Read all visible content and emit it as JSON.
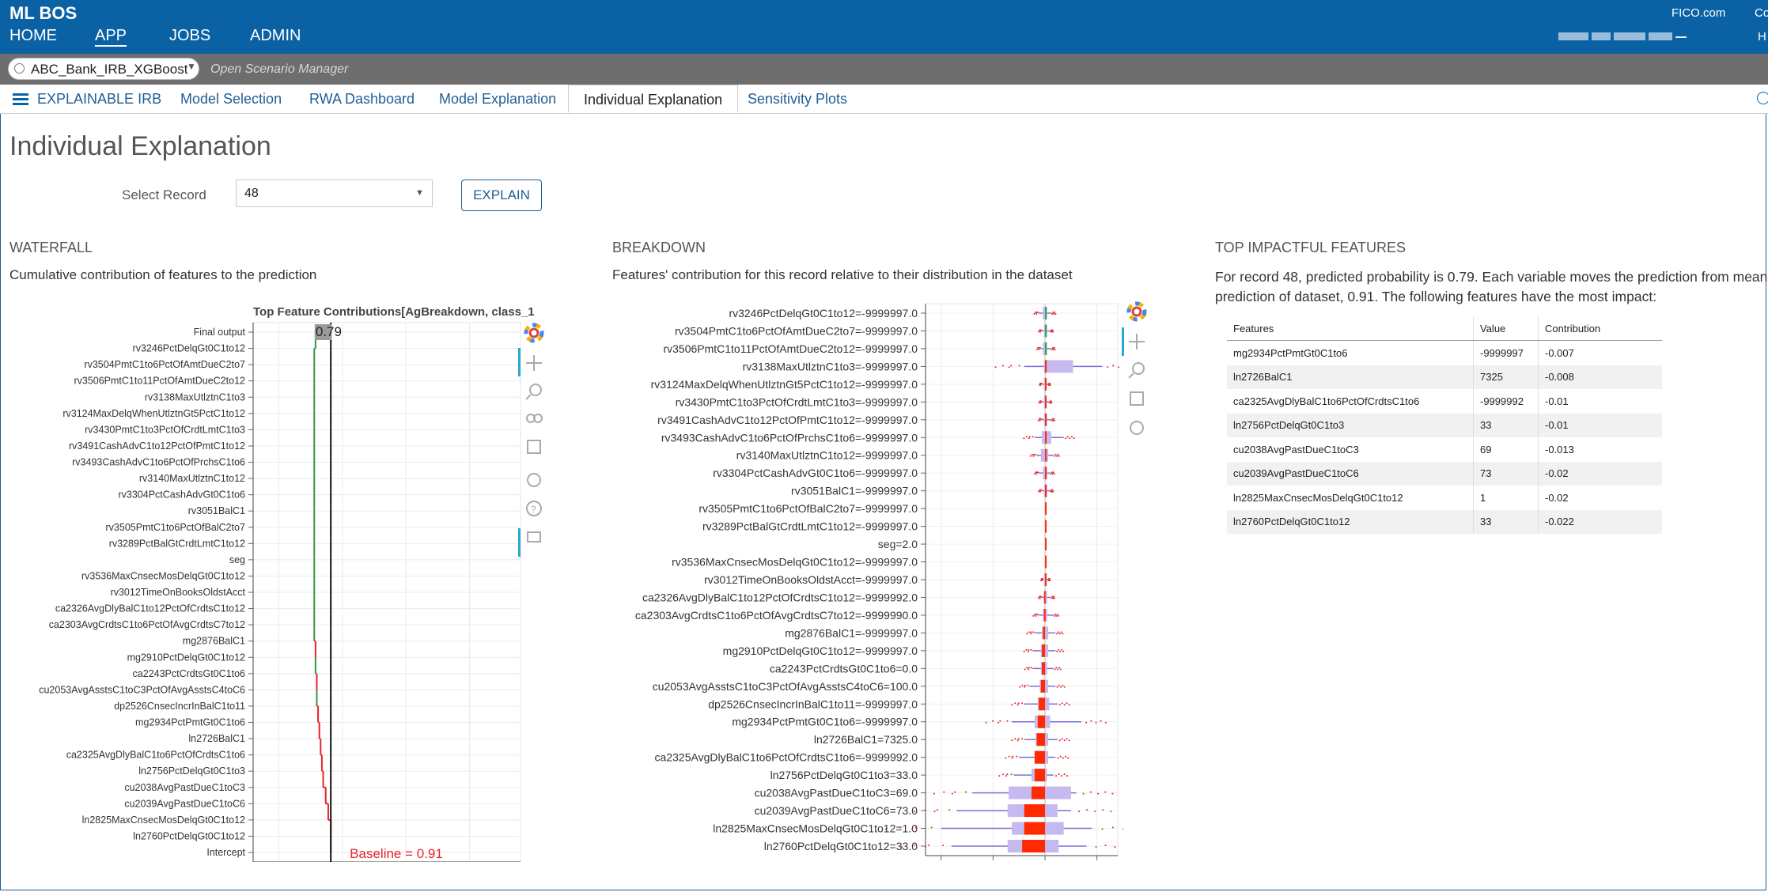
{
  "app": {
    "brand": "ML BOS",
    "fico": "FICO.com",
    "co": "Co",
    "h": "H"
  },
  "nav": [
    "HOME",
    "APP",
    "JOBS",
    "ADMIN"
  ],
  "scenario": {
    "name": "ABC_Bank_IRB_XGBoost",
    "open_manager": "Open Scenario Manager"
  },
  "tabs": [
    "EXPLAINABLE IRB",
    "Model Selection",
    "RWA Dashboard",
    "Model Explanation",
    "Individual Explanation",
    "Sensitivity Plots"
  ],
  "page_title": "Individual Explanation",
  "select": {
    "label": "Select Record",
    "value": "48",
    "button": "EXPLAIN"
  },
  "waterfall": {
    "heading": "WATERFALL",
    "desc": "Cumulative contribution of features to the prediction",
    "chart_title": "Top Feature Contributions[AgBreakdown, class_1",
    "top_label": "0.79",
    "baseline_label": "Baseline = 0.91",
    "x_ticks": [
      "0.5",
      "1",
      "1.5",
      "2"
    ],
    "labels": [
      "Final output",
      "rv3246PctDelqGt0C1to12",
      "rv3504PmtC1to6PctOfAmtDueC2to7",
      "rv3506PmtC1to11PctOfAmtDueC2to12",
      "rv3138MaxUtlztnC1to3",
      "rv3124MaxDelqWhenUtlztnGt5PctC1to12",
      "rv3430PmtC1to3PctOfCrdtLmtC1to3",
      "rv3491CashAdvC1to12PctOfPmtC1to12",
      "rv3493CashAdvC1to6PctOfPrchsC1to6",
      "rv3140MaxUtlztnC1to12",
      "rv3304PctCashAdvGt0C1to6",
      "rv3051BalC1",
      "rv3505PmtC1to6PctOfBalC2to7",
      "rv3289PctBalGtCrdtLmtC1to12",
      "seg",
      "rv3536MaxCnsecMosDelqGt0C1to12",
      "rv3012TimeOnBooksOldstAcct",
      "ca2326AvgDlyBalC1to12PctOfCrdtsC1to12",
      "ca2303AvgCrdtsC1to6PctOfAvgCrdtsC7to12",
      "mg2876BalC1",
      "mg2910PctDelqGt0C1to12",
      "ca2243PctCrdtsGt0C1to6",
      "cu2053AvgAsstsC1toC3PctOfAvgAsstsC4toC6",
      "dp2526CnsecIncrInBalC1to11",
      "mg2934PctPmtGt0C1to6",
      "ln2726BalC1",
      "ca2325AvgDlyBalC1to6PctOfCrdtsC1to6",
      "ln2756PctDelqGt0C1to3",
      "cu2038AvgPastDueC1toC3",
      "cu2039AvgPastDueC1toC6",
      "ln2825MaxCnsecMosDelqGt0C1to12",
      "ln2760PctDelqGt0C1to12",
      "Intercept"
    ]
  },
  "breakdown": {
    "heading": "BREAKDOWN",
    "desc": "Features' contribution for this record relative to their distribution in the dataset",
    "x_ticks": [
      "-0.1",
      "-0.05",
      "0",
      "0.05"
    ],
    "labels": [
      "rv3246PctDelqGt0C1to12=-9999997.0",
      "rv3504PmtC1to6PctOfAmtDueC2to7=-9999997.0",
      "rv3506PmtC1to11PctOfAmtDueC2to12=-9999997.0",
      "rv3138MaxUtlztnC1to3=-9999997.0",
      "rv3124MaxDelqWhenUtlztnGt5PctC1to12=-9999997.0",
      "rv3430PmtC1to3PctOfCrdtLmtC1to3=-9999997.0",
      "rv3491CashAdvC1to12PctOfPmtC1to12=-9999997.0",
      "rv3493CashAdvC1to6PctOfPrchsC1to6=-9999997.0",
      "rv3140MaxUtlztnC1to12=-9999997.0",
      "rv3304PctCashAdvGt0C1to6=-9999997.0",
      "rv3051BalC1=-9999997.0",
      "rv3505PmtC1to6PctOfBalC2to7=-9999997.0",
      "rv3289PctBalGtCrdtLmtC1to12=-9999997.0",
      "seg=2.0",
      "rv3536MaxCnsecMosDelqGt0C1to12=-9999997.0",
      "rv3012TimeOnBooksOldstAcct=-9999997.0",
      "ca2326AvgDlyBalC1to12PctOfCrdtsC1to12=-9999992.0",
      "ca2303AvgCrdtsC1to6PctOfAvgCrdtsC7to12=-9999990.0",
      "mg2876BalC1=-9999997.0",
      "mg2910PctDelqGt0C1to12=-9999997.0",
      "ca2243PctCrdtsGt0C1to6=0.0",
      "cu2053AvgAsstsC1toC3PctOfAvgAsstsC4toC6=100.0",
      "dp2526CnsecIncrInBalC1to11=-9999997.0",
      "mg2934PctPmtGt0C1to6=-9999997.0",
      "ln2726BalC1=7325.0",
      "ca2325AvgDlyBalC1to6PctOfCrdtsC1to6=-9999992.0",
      "ln2756PctDelqGt0C1to3=33.0",
      "cu2038AvgPastDueC1toC3=69.0",
      "cu2039AvgPastDueC1toC6=73.0",
      "ln2825MaxCnsecMosDelqGt0C1to12=1.0",
      "ln2760PctDelqGt0C1to12=33.0"
    ]
  },
  "top_features": {
    "heading": "TOP IMPACTFUL FEATURES",
    "summary": "For record 48, predicted probability is 0.79. Each variable moves the prediction from mean prediction of dataset, 0.91. The following features have the most impact:",
    "columns": [
      "Features",
      "Value",
      "Contribution"
    ],
    "rows": [
      [
        "mg2934PctPmtGt0C1to6",
        "-9999997",
        "-0.007"
      ],
      [
        "ln2726BalC1",
        "7325",
        "-0.008"
      ],
      [
        "ca2325AvgDlyBalC1to6PctOfCrdtsC1to6",
        "-9999992",
        "-0.01"
      ],
      [
        "ln2756PctDelqGt0C1to3",
        "33",
        "-0.01"
      ],
      [
        "cu2038AvgPastDueC1toC3",
        "69",
        "-0.013"
      ],
      [
        "cu2039AvgPastDueC1toC6",
        "73",
        "-0.02"
      ],
      [
        "ln2825MaxCnsecMosDelqGt0C1to12",
        "1",
        "-0.02"
      ],
      [
        "ln2760PctDelqGt0C1to12",
        "33",
        "-0.022"
      ]
    ]
  },
  "chart_data": [
    {
      "type": "bar",
      "title": "Top Feature Contributions[AgBreakdown, class_1",
      "categories": [
        "Final output",
        "rv3246PctDelqGt0C1to12",
        "rv3504PmtC1to6PctOfAmtDueC2to7",
        "rv3506PmtC1to11PctOfAmtDueC2to12",
        "rv3138MaxUtlztnC1to3",
        "rv3124MaxDelqWhenUtlztnGt5PctC1to12",
        "rv3430PmtC1to3PctOfCrdtLmtC1to3",
        "rv3491CashAdvC1to12PctOfPmtC1to12",
        "rv3493CashAdvC1to6PctOfPrchsC1to6",
        "rv3140MaxUtlztnC1to12",
        "rv3304PctCashAdvGt0C1to6",
        "rv3051BalC1",
        "rv3505PmtC1to6PctOfBalC2to7",
        "rv3289PctBalGtCrdtLmtC1to12",
        "seg",
        "rv3536MaxCnsecMosDelqGt0C1to12",
        "rv3012TimeOnBooksOldstAcct",
        "ca2326AvgDlyBalC1to12PctOfCrdtsC1to12",
        "ca2303AvgCrdtsC1to6PctOfAvgCrdtsC7to12",
        "mg2876BalC1",
        "mg2910PctDelqGt0C1to12",
        "ca2243PctCrdtsGt0C1to6",
        "cu2053AvgAsstsC1toC3PctOfAvgAsstsC4toC6",
        "dp2526CnsecIncrInBalC1to11",
        "mg2934PctPmtGt0C1to6",
        "ln2726BalC1",
        "ca2325AvgDlyBalC1to6PctOfCrdtsC1to6",
        "ln2756PctDelqGt0C1to3",
        "cu2038AvgPastDueC1toC3",
        "cu2039AvgPastDueC1toC6",
        "ln2825MaxCnsecMosDelqGt0C1to12",
        "ln2760PctDelqGt0C1to12",
        "Intercept"
      ],
      "cumulative": [
        0.79,
        0.79,
        0.78,
        0.78,
        0.78,
        0.78,
        0.78,
        0.78,
        0.78,
        0.78,
        0.78,
        0.78,
        0.78,
        0.78,
        0.78,
        0.78,
        0.78,
        0.78,
        0.78,
        0.78,
        0.79,
        0.79,
        0.8,
        0.8,
        0.81,
        0.82,
        0.83,
        0.84,
        0.85,
        0.87,
        0.89,
        0.91,
        0.91
      ],
      "xlim": [
        0.3,
        2.4
      ],
      "final_output": 0.79,
      "baseline": 0.91,
      "colors": {
        "increase": "#2e9a3e",
        "decrease": "#e8242b"
      }
    },
    {
      "type": "box",
      "categories": [
        "rv3246PctDelqGt0C1to12=-9999997.0",
        "rv3504PmtC1to6PctOfAmtDueC2to7=-9999997.0",
        "rv3506PmtC1to11PctOfAmtDueC2to12=-9999997.0",
        "rv3138MaxUtlztnC1to3=-9999997.0",
        "rv3124MaxDelqWhenUtlztnGt5PctC1to12=-9999997.0",
        "rv3430PmtC1to3PctOfCrdtLmtC1to3=-9999997.0",
        "rv3491CashAdvC1to12PctOfPmtC1to12=-9999997.0",
        "rv3493CashAdvC1to6PctOfPrchsC1to6=-9999997.0",
        "rv3140MaxUtlztnC1to12=-9999997.0",
        "rv3304PctCashAdvGt0C1to6=-9999997.0",
        "rv3051BalC1=-9999997.0",
        "rv3505PmtC1to6PctOfBalC2to7=-9999997.0",
        "rv3289PctBalGtCrdtLmtC1to12=-9999997.0",
        "seg=2.0",
        "rv3536MaxCnsecMosDelqGt0C1to12=-9999997.0",
        "rv3012TimeOnBooksOldstAcct=-9999997.0",
        "ca2326AvgDlyBalC1to12PctOfCrdtsC1to12=-9999992.0",
        "ca2303AvgCrdtsC1to6PctOfAvgCrdtsC7to12=-9999990.0",
        "mg2876BalC1=-9999997.0",
        "mg2910PctDelqGt0C1to12=-9999997.0",
        "ca2243PctCrdtsGt0C1to6=0.0",
        "cu2053AvgAsstsC1toC3PctOfAvgAsstsC4toC6=100.0",
        "dp2526CnsecIncrInBalC1to11=-9999997.0",
        "mg2934PctPmtGt0C1to6=-9999997.0",
        "ln2726BalC1=7325.0",
        "ca2325AvgDlyBalC1to6PctOfCrdtsC1to6=-9999992.0",
        "ln2756PctDelqGt0C1to3=33.0",
        "cu2038AvgPastDueC1toC3=69.0",
        "cu2039AvgPastDueC1toC6=73.0",
        "ln2825MaxCnsecMosDelqGt0C1to12=1.0",
        "ln2760PctDelqGt0C1to12=33.0"
      ],
      "record_contribution": [
        0.001,
        0.001,
        0.001,
        0.0,
        0.0,
        0.0,
        0.0,
        0.0,
        0.0,
        0.0,
        0.0,
        0.0,
        0.0,
        0.0,
        0.0,
        0.0,
        -0.001,
        -0.001,
        -0.002,
        -0.003,
        -0.003,
        -0.004,
        -0.006,
        -0.007,
        -0.008,
        -0.01,
        -0.01,
        -0.013,
        -0.02,
        -0.02,
        -0.022
      ],
      "box_q1": [
        -0.002,
        -0.001,
        -0.002,
        -0.001,
        -0.001,
        -0.001,
        -0.001,
        -0.003,
        -0.004,
        -0.002,
        -0.001,
        0,
        0,
        0,
        0,
        -0.001,
        -0.001,
        -0.002,
        -0.003,
        -0.004,
        -0.004,
        -0.005,
        -0.007,
        -0.01,
        -0.009,
        -0.01,
        -0.013,
        -0.035,
        -0.036,
        -0.032,
        -0.036
      ],
      "box_q3": [
        0.002,
        0.002,
        0.002,
        0.027,
        0.001,
        0.001,
        0.002,
        0.006,
        0.003,
        0.002,
        0.002,
        0,
        0,
        0,
        0,
        0.001,
        0.002,
        0.002,
        0.003,
        0.003,
        0.002,
        0.003,
        0.004,
        0.005,
        0.003,
        0.003,
        0.002,
        0.025,
        0.012,
        0.018,
        0.013
      ],
      "whisker_min": [
        -0.006,
        -0.003,
        -0.004,
        -0.02,
        -0.003,
        -0.003,
        -0.003,
        -0.01,
        -0.008,
        -0.006,
        -0.003,
        0,
        0,
        0,
        0,
        -0.002,
        -0.003,
        -0.006,
        -0.01,
        -0.012,
        -0.012,
        -0.015,
        -0.02,
        -0.032,
        -0.02,
        -0.025,
        -0.03,
        -0.07,
        -0.085,
        -0.1,
        -0.09
      ],
      "whisker_max": [
        0.006,
        0.005,
        0.006,
        0.055,
        0.003,
        0.004,
        0.006,
        0.018,
        0.008,
        0.005,
        0.005,
        0,
        0,
        0,
        0,
        0.003,
        0.006,
        0.008,
        0.01,
        0.01,
        0.008,
        0.01,
        0.012,
        0.035,
        0.012,
        0.01,
        0.008,
        0.03,
        0.025,
        0.045,
        0.04
      ],
      "xlim": [
        -0.115,
        0.07
      ],
      "colors": {
        "box": "#c6b9ef",
        "record": "#ff2a00",
        "outlier": "#e8242b",
        "positive_record": "#28a745"
      }
    }
  ]
}
